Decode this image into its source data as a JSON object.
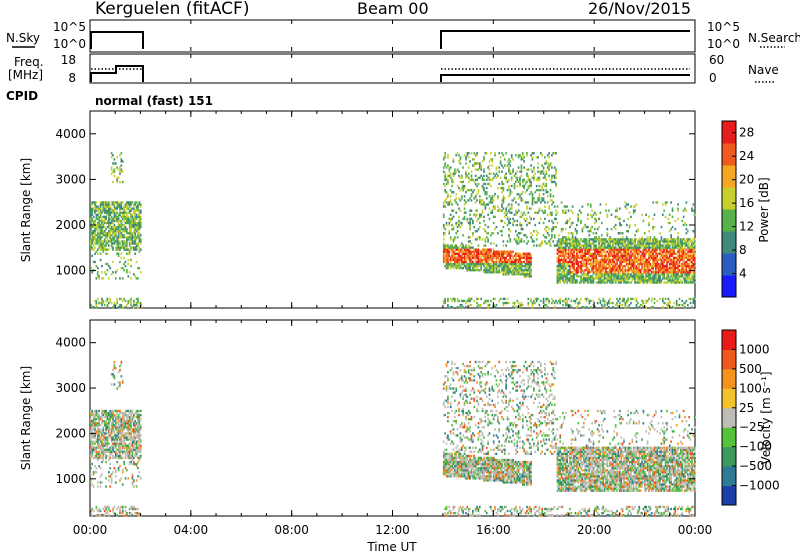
{
  "header": {
    "title": "Kerguelen (fitACF)",
    "beam": "Beam 00",
    "date": "26/Nov/2015"
  },
  "nsky_panel": {
    "left_label": "N.Sky",
    "left_ticks": [
      "10^5",
      "10^0"
    ],
    "right_ticks": [
      "10^5",
      "10^0"
    ],
    "right_label": "N.Search"
  },
  "freq_panel": {
    "left_label_1": "Freq.",
    "left_label_2": "[MHz]",
    "left_ticks": [
      "18",
      "8"
    ],
    "right_ticks": [
      "60",
      "0"
    ],
    "right_label": "Nave",
    "cpid_label": "CPID",
    "cpid_value": "normal (fast) 151"
  },
  "chart_data": [
    {
      "type": "heatmap",
      "ylabel": "Slant Range [km]",
      "xlabel": "",
      "xlim": [
        0,
        24
      ],
      "ylim": [
        180,
        4500
      ],
      "x_tick_labels": [
        "00:00",
        "04:00",
        "08:00",
        "12:00",
        "16:00",
        "20:00",
        "00:00"
      ],
      "y_ticks": [
        1000,
        2000,
        3000,
        4000
      ],
      "colorbar": {
        "label": "Power [dB]",
        "ticks": [
          "4",
          "8",
          "12",
          "16",
          "20",
          "24",
          "28"
        ],
        "range": [
          0,
          30
        ],
        "colors": [
          "#1a1aff",
          "#2a5fc0",
          "#3f8a7a",
          "#57b24a",
          "#c8d02e",
          "#f5a623",
          "#ef5a1f",
          "#e81c1c"
        ]
      },
      "data_windows_hours": [
        [
          0,
          2
        ],
        [
          14,
          24
        ]
      ]
    },
    {
      "type": "heatmap",
      "ylabel": "Slant Range [km]",
      "xlabel": "Time UT",
      "xlim": [
        0,
        24
      ],
      "ylim": [
        180,
        4500
      ],
      "x_tick_labels": [
        "00:00",
        "04:00",
        "08:00",
        "12:00",
        "16:00",
        "20:00",
        "00:00"
      ],
      "y_ticks": [
        1000,
        2000,
        3000,
        4000
      ],
      "colorbar": {
        "label": "Velocity [m s⁻¹]",
        "ticks": [
          "1000",
          "500",
          "100",
          "25",
          "−25",
          "−100",
          "−500",
          "−1000"
        ],
        "colors": [
          "#1f3fa8",
          "#2f7a95",
          "#3c9a5c",
          "#55c23a",
          "#bdbdb5",
          "#f2c32a",
          "#f5931f",
          "#ee5a1e",
          "#e81a1a"
        ]
      },
      "data_windows_hours": [
        [
          0,
          2
        ],
        [
          14,
          24
        ]
      ]
    }
  ]
}
